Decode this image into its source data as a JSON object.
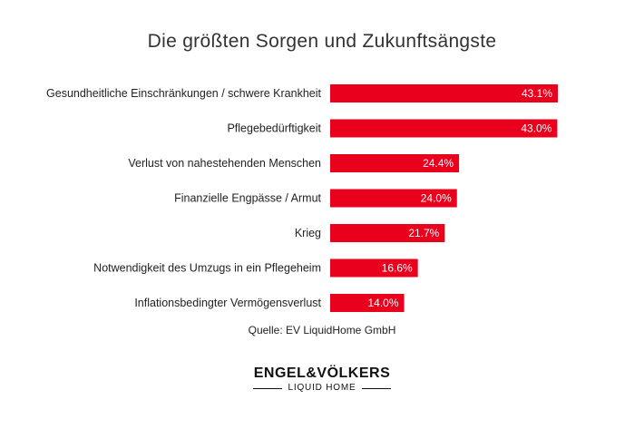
{
  "chart_data": {
    "type": "bar",
    "orientation": "horizontal",
    "title": "Die größten Sorgen und Zukunftsängste",
    "categories": [
      "Gesundheitliche Einschränkungen / schwere Krankheit",
      "Pflegebedürftigkeit",
      "Verlust von nahestehenden Menschen",
      "Finanzielle Engpässe / Armut",
      "Krieg",
      "Notwendigkeit des Umzugs in ein Pflegeheim",
      "Inflationsbedingter Vermögensverlust"
    ],
    "values": [
      43.1,
      43.0,
      24.4,
      24.0,
      21.7,
      16.6,
      14.0
    ],
    "value_labels": [
      "43.1%",
      "43.0%",
      "24.4%",
      "24.0%",
      "21.7%",
      "16.6%",
      "14.0%"
    ],
    "unit": "%",
    "bar_color": "#e8001c",
    "label_color": "#ffffff",
    "grid": false,
    "legend": "none",
    "xlim": [
      0,
      43.1
    ]
  },
  "source": "Quelle: EV LiquidHome GmbH",
  "logo": {
    "main": "ENGEL&VÖLKERS",
    "sub": "LIQUID HOME"
  }
}
